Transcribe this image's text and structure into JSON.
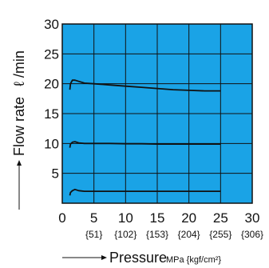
{
  "chart_data": {
    "type": "line",
    "xlabel": "Pressure",
    "xunit": "MPa {kgf/cm²}",
    "ylabel": "Flow rate",
    "yunit": "ℓ /min",
    "xlim": [
      0,
      30
    ],
    "ylim": [
      0,
      30
    ],
    "x_ticks": [
      "0",
      "5",
      "10",
      "15",
      "20",
      "25",
      "30"
    ],
    "x_subticks": [
      "{51}",
      "{102}",
      "{153}",
      "{204}",
      "{255}",
      "{306}"
    ],
    "y_ticks": [
      "5",
      "10",
      "15",
      "20",
      "25",
      "30"
    ],
    "grid": true,
    "background": "#1aa3e6",
    "line_color": "#111111",
    "series": [
      {
        "x": [
          1.2,
          1.3,
          1.6,
          2.0,
          2.6,
          3.5,
          5,
          7.5,
          10,
          12.5,
          15,
          17.5,
          20,
          22.5,
          25
        ],
        "y": [
          19.0,
          20.0,
          20.6,
          20.6,
          20.4,
          20.1,
          20.0,
          19.8,
          19.6,
          19.4,
          19.2,
          19.0,
          18.9,
          18.8,
          18.8
        ]
      },
      {
        "x": [
          1.2,
          1.3,
          1.6,
          2.0,
          2.6,
          3.5,
          5,
          7.5,
          10,
          12.5,
          15,
          17.5,
          20,
          22.5,
          25
        ],
        "y": [
          9.3,
          9.9,
          10.2,
          10.3,
          10.1,
          10.0,
          10.0,
          10.0,
          9.95,
          9.95,
          9.9,
          9.9,
          9.9,
          9.9,
          9.9
        ]
      },
      {
        "x": [
          1.2,
          1.3,
          1.6,
          2.0,
          2.6,
          3.5,
          5,
          7.5,
          10,
          12.5,
          15,
          17.5,
          20,
          22.5,
          25
        ],
        "y": [
          1.3,
          1.8,
          2.1,
          2.3,
          2.1,
          2.0,
          2.0,
          2.0,
          2.0,
          2.0,
          2.0,
          2.0,
          2.0,
          2.0,
          2.0
        ]
      }
    ]
  }
}
